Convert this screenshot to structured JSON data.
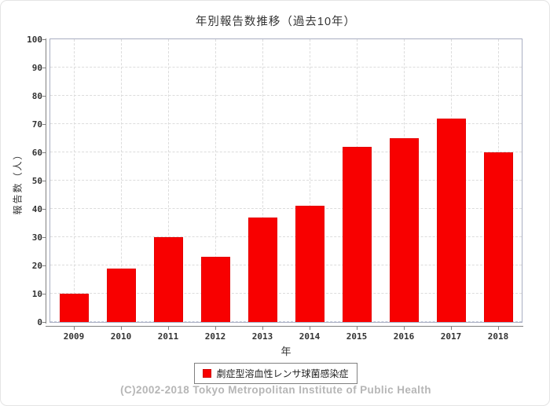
{
  "page": {
    "footer": "(C)2002-2018 Tokyo Metropolitan Institute of Public Health"
  },
  "chart_data": {
    "type": "bar",
    "title": "年別報告数推移（過去10年）",
    "categories": [
      "2009",
      "2010",
      "2011",
      "2012",
      "2013",
      "2014",
      "2015",
      "2016",
      "2017",
      "2018"
    ],
    "values": [
      10,
      19,
      30,
      23,
      37,
      41,
      62,
      65,
      72,
      60
    ],
    "xlabel": "年",
    "ylabel": "報告数（人）",
    "ylim": [
      0,
      100
    ],
    "ytick_step": 10,
    "grid": true,
    "legend": {
      "position": "bottom",
      "entries": [
        {
          "label": "劇症型溶血性レンサ球菌感染症",
          "color": "#f80000"
        }
      ]
    }
  },
  "colors": {
    "bar": "#f80000",
    "bar_border": "#e40000",
    "gridline": "#dcdcdc",
    "axis_line": "#808080",
    "plot_border": "#a9aec2",
    "title_text": "#333333",
    "tick_text": "#333333",
    "footer_text": "#b6b6b6"
  }
}
